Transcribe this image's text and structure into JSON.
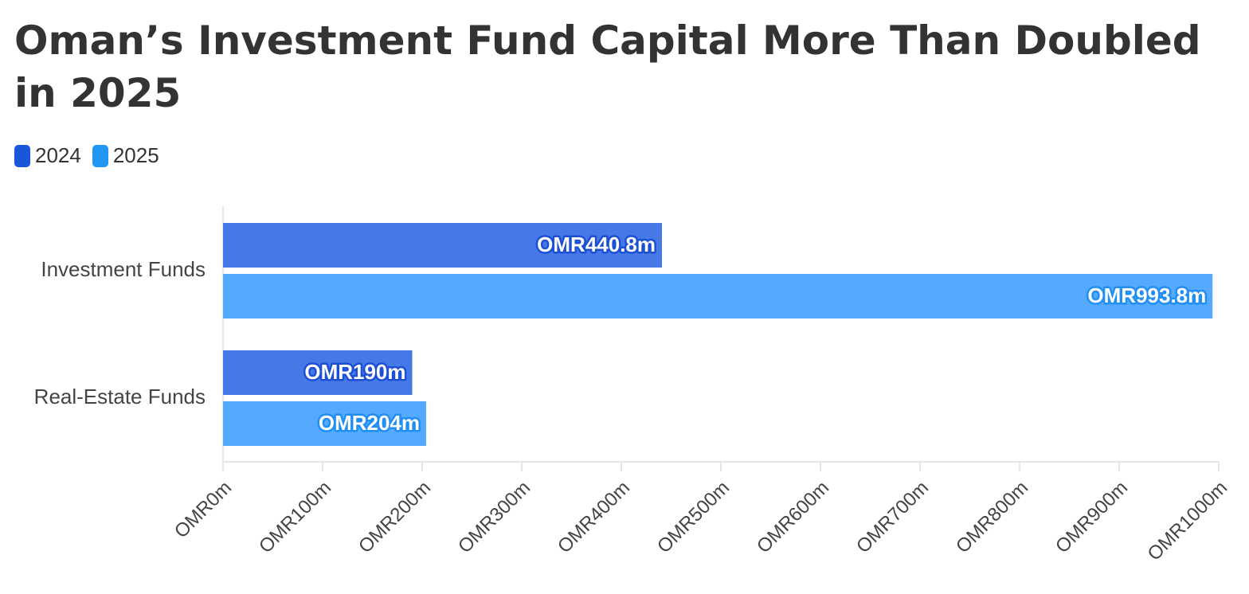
{
  "chart_data": {
    "type": "bar",
    "orientation": "horizontal",
    "title": "Oman’s Investment Fund Capital More Than Doubled in 2025",
    "categories": [
      "Investment Funds",
      "Real-Estate Funds"
    ],
    "series": [
      {
        "name": "2024",
        "color": "#4779e6",
        "label_stroke": "#1a4fd6",
        "swatch": "#1a56db",
        "values": [
          440.8,
          190
        ],
        "labels": [
          "OMR440.8m",
          "OMR190m"
        ]
      },
      {
        "name": "2025",
        "color": "#55aaff",
        "label_stroke": "#1f8ef5",
        "swatch": "#2196f3",
        "values": [
          993.8,
          204
        ],
        "labels": [
          "OMR993.8m",
          "OMR204m"
        ]
      }
    ],
    "xlim": [
      0,
      1000
    ],
    "xticks": [
      0,
      100,
      200,
      300,
      400,
      500,
      600,
      700,
      800,
      900,
      1000
    ],
    "xtick_labels": [
      "OMR0m",
      "OMR100m",
      "OMR200m",
      "OMR300m",
      "OMR400m",
      "OMR500m",
      "OMR600m",
      "OMR700m",
      "OMR800m",
      "OMR900m",
      "OMR1000m"
    ],
    "xlabel": "",
    "ylabel": "",
    "legend_position": "top-left",
    "grid": false
  }
}
